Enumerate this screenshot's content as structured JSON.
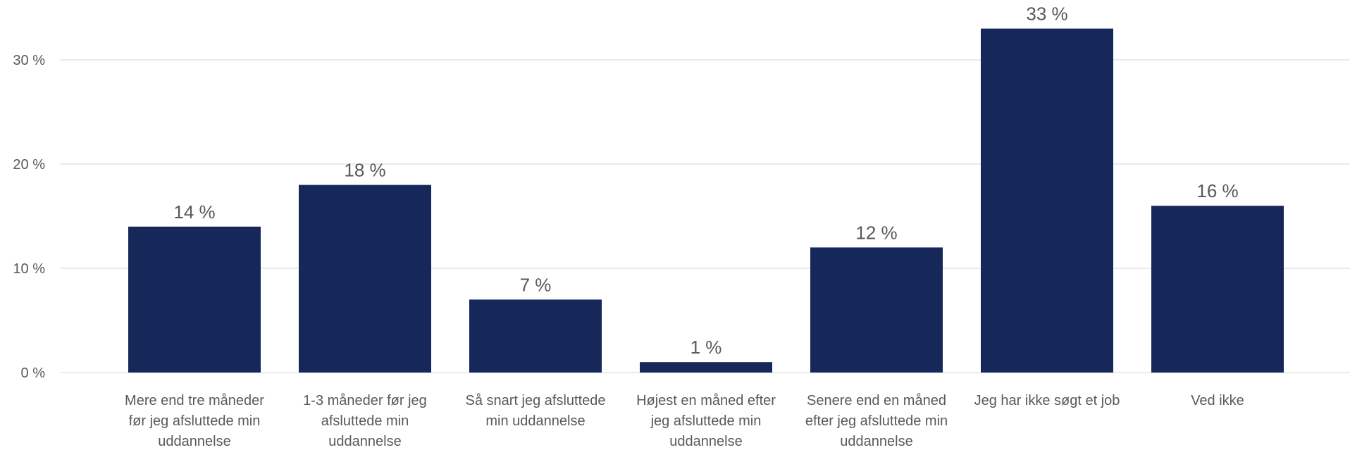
{
  "chart_data": {
    "type": "bar",
    "categories": [
      "Mere end tre måneder før jeg afsluttede min uddannelse",
      "1-3 måneder før jeg afsluttede min uddannelse",
      "Så snart jeg afsluttede min uddannelse",
      "Højest en måned efter jeg afsluttede min uddannelse",
      "Senere end en måned efter jeg afsluttede min uddannelse",
      "Jeg har ikke søgt et job",
      "Ved ikke"
    ],
    "category_label_lines": [
      [
        "Mere end tre måneder",
        "før jeg afsluttede min",
        "uddannelse"
      ],
      [
        "1-3 måneder før jeg",
        "afsluttede min",
        "uddannelse"
      ],
      [
        "Så snart jeg afsluttede",
        "min uddannelse"
      ],
      [
        "Højest en måned efter",
        "jeg afsluttede min",
        "uddannelse"
      ],
      [
        "Senere end en måned",
        "efter jeg afsluttede min",
        "uddannelse"
      ],
      [
        "Jeg har ikke søgt et job"
      ],
      [
        "Ved ikke"
      ]
    ],
    "values": [
      14,
      18,
      7,
      1,
      12,
      33,
      16
    ],
    "data_labels": [
      "14 %",
      "18 %",
      "7 %",
      "1 %",
      "12 %",
      "33 %",
      "16 %"
    ],
    "ylim": [
      0,
      33
    ],
    "yticks": [
      0,
      10,
      20,
      30
    ],
    "ytick_labels": [
      "0 %",
      "10 %",
      "20 %",
      "30 %"
    ],
    "grid": true,
    "bar_color": "#16275a",
    "title": "",
    "xlabel": "",
    "ylabel": ""
  }
}
